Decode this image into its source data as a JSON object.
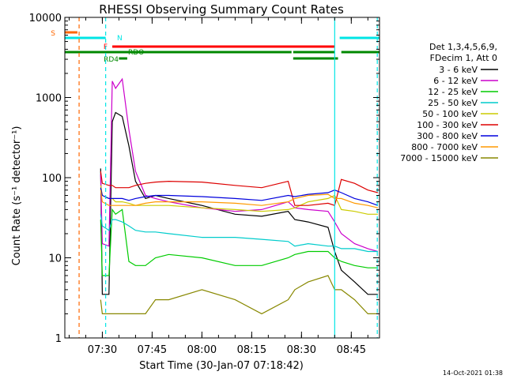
{
  "chart_data": {
    "type": "line",
    "title": "RHESSI Observing Summary Count Rates",
    "xlabel": "Start Time (30-Jan-07 07:18:42)",
    "ylabel": "Count Rate (s⁻¹ detector⁻¹)",
    "y_scale": "log",
    "ylim": [
      1,
      10000
    ],
    "xlim": [
      "07:18:42",
      "08:53:30"
    ],
    "x_ticks": [
      "07:30",
      "07:45",
      "08:00",
      "08:15",
      "08:30",
      "08:45"
    ],
    "y_ticks": [
      "1",
      "10",
      "100",
      "1000",
      "10000"
    ],
    "legend_header": [
      "Det 1,3,4,5,6,9,",
      "FDecim 1, Att 0"
    ],
    "legend_position": "right",
    "timestamp": "14-Oct-2021 01:38",
    "series": [
      {
        "name": "3 - 6 keV",
        "color": "#000000",
        "x": [
          "07:29:30",
          "07:30:00",
          "07:32:00",
          "07:33:00",
          "07:34:00",
          "07:36:00",
          "07:38:00",
          "07:40:00",
          "07:43:00",
          "07:46:00",
          "07:50:00",
          "08:00:00",
          "08:10:00",
          "08:18:00",
          "08:26:00",
          "08:28:00",
          "08:32:00",
          "08:38:00",
          "08:40:00",
          "08:42:00",
          "08:46:00",
          "08:50:00",
          "08:53:00"
        ],
        "values": [
          130,
          3.5,
          3.5,
          500,
          650,
          580,
          250,
          90,
          55,
          60,
          55,
          45,
          35,
          33,
          38,
          30,
          28,
          24,
          12,
          7,
          5,
          3.5,
          3.5
        ]
      },
      {
        "name": "6 - 12 keV",
        "color": "#cc00cc",
        "x": [
          "07:29:30",
          "07:30:00",
          "07:32:00",
          "07:33:00",
          "07:34:00",
          "07:36:00",
          "07:38:00",
          "07:40:00",
          "07:43:00",
          "07:46:00",
          "07:50:00",
          "08:00:00",
          "08:10:00",
          "08:18:00",
          "08:26:00",
          "08:28:00",
          "08:32:00",
          "08:38:00",
          "08:40:00",
          "08:42:00",
          "08:46:00",
          "08:50:00",
          "08:53:00"
        ],
        "values": [
          110,
          15,
          14,
          1600,
          1300,
          1700,
          400,
          120,
          60,
          55,
          50,
          42,
          38,
          40,
          50,
          42,
          40,
          38,
          28,
          20,
          15,
          13,
          12
        ]
      },
      {
        "name": "12 - 25 keV",
        "color": "#00cc00",
        "x": [
          "07:29:30",
          "07:30:00",
          "07:32:00",
          "07:33:00",
          "07:34:00",
          "07:36:00",
          "07:38:00",
          "07:40:00",
          "07:43:00",
          "07:46:00",
          "07:50:00",
          "08:00:00",
          "08:10:00",
          "08:18:00",
          "08:26:00",
          "08:28:00",
          "08:32:00",
          "08:38:00",
          "08:40:00",
          "08:42:00",
          "08:46:00",
          "08:50:00",
          "08:53:00"
        ],
        "values": [
          30,
          6,
          6,
          40,
          35,
          40,
          9,
          8,
          8,
          10,
          11,
          10,
          8,
          8,
          10,
          11,
          12,
          12,
          10,
          9,
          8,
          7.5,
          7.5
        ]
      },
      {
        "name": "25 - 50 keV",
        "color": "#00cccc",
        "x": [
          "07:29:30",
          "07:30:00",
          "07:32:00",
          "07:33:00",
          "07:34:00",
          "07:36:00",
          "07:38:00",
          "07:40:00",
          "07:43:00",
          "07:46:00",
          "07:50:00",
          "08:00:00",
          "08:10:00",
          "08:18:00",
          "08:26:00",
          "08:28:00",
          "08:32:00",
          "08:38:00",
          "08:40:00",
          "08:42:00",
          "08:46:00",
          "08:50:00",
          "08:53:00"
        ],
        "values": [
          35,
          25,
          22,
          30,
          30,
          28,
          25,
          22,
          21,
          21,
          20,
          18,
          18,
          17,
          16,
          14,
          15,
          14,
          14,
          13,
          13,
          12,
          12
        ]
      },
      {
        "name": "50 - 100 keV",
        "color": "#cccc00",
        "x": [
          "07:29:30",
          "07:30:00",
          "07:32:00",
          "07:33:00",
          "07:34:00",
          "07:36:00",
          "07:38:00",
          "07:40:00",
          "07:43:00",
          "07:46:00",
          "07:50:00",
          "08:00:00",
          "08:10:00",
          "08:18:00",
          "08:26:00",
          "08:28:00",
          "08:32:00",
          "08:38:00",
          "08:40:00",
          "08:42:00",
          "08:46:00",
          "08:50:00",
          "08:53:00"
        ],
        "values": [
          80,
          60,
          55,
          55,
          50,
          50,
          48,
          45,
          45,
          45,
          45,
          42,
          40,
          38,
          40,
          42,
          50,
          55,
          60,
          40,
          38,
          35,
          35
        ]
      },
      {
        "name": "100 - 300 keV",
        "color": "#dd0000",
        "x": [
          "07:29:30",
          "07:30:00",
          "07:32:00",
          "07:33:00",
          "07:34:00",
          "07:36:00",
          "07:38:00",
          "07:40:00",
          "07:43:00",
          "07:46:00",
          "07:50:00",
          "08:00:00",
          "08:10:00",
          "08:18:00",
          "08:26:00",
          "08:28:00",
          "08:32:00",
          "08:38:00",
          "08:40:00",
          "08:42:00",
          "08:46:00",
          "08:50:00",
          "08:53:00"
        ],
        "values": [
          120,
          85,
          80,
          80,
          75,
          75,
          75,
          80,
          85,
          88,
          90,
          88,
          80,
          75,
          90,
          45,
          45,
          48,
          45,
          95,
          85,
          70,
          65
        ]
      },
      {
        "name": "300 - 800 keV",
        "color": "#0000dd",
        "x": [
          "07:29:30",
          "07:30:00",
          "07:32:00",
          "07:33:00",
          "07:34:00",
          "07:36:00",
          "07:38:00",
          "07:40:00",
          "07:43:00",
          "07:46:00",
          "07:50:00",
          "08:00:00",
          "08:10:00",
          "08:18:00",
          "08:26:00",
          "08:28:00",
          "08:32:00",
          "08:38:00",
          "08:40:00",
          "08:42:00",
          "08:46:00",
          "08:50:00",
          "08:53:00"
        ],
        "values": [
          75,
          60,
          55,
          55,
          55,
          55,
          52,
          55,
          58,
          60,
          60,
          58,
          55,
          52,
          60,
          58,
          62,
          65,
          70,
          65,
          55,
          50,
          45
        ]
      },
      {
        "name": "800 - 7000 keV",
        "color": "#ff9900",
        "x": [
          "07:29:30",
          "07:30:00",
          "07:32:00",
          "07:33:00",
          "07:34:00",
          "07:36:00",
          "07:38:00",
          "07:40:00",
          "07:43:00",
          "07:46:00",
          "07:50:00",
          "08:00:00",
          "08:10:00",
          "08:18:00",
          "08:26:00",
          "08:28:00",
          "08:32:00",
          "08:38:00",
          "08:40:00",
          "08:42:00",
          "08:46:00",
          "08:50:00",
          "08:53:00"
        ],
        "values": [
          70,
          50,
          45,
          45,
          45,
          45,
          45,
          45,
          48,
          50,
          50,
          50,
          48,
          45,
          50,
          55,
          60,
          62,
          55,
          55,
          48,
          45,
          42
        ]
      },
      {
        "name": "7000 - 15000 keV",
        "color": "#888800",
        "x": [
          "07:29:30",
          "07:30:00",
          "07:32:00",
          "07:33:00",
          "07:34:00",
          "07:36:00",
          "07:38:00",
          "07:40:00",
          "07:43:00",
          "07:46:00",
          "07:50:00",
          "08:00:00",
          "08:10:00",
          "08:18:00",
          "08:26:00",
          "08:28:00",
          "08:32:00",
          "08:38:00",
          "08:40:00",
          "08:42:00",
          "08:46:00",
          "08:50:00",
          "08:53:00"
        ],
        "values": [
          3,
          2,
          2,
          2,
          2,
          2,
          2,
          2,
          2,
          3,
          3,
          4,
          3,
          2,
          3,
          4,
          5,
          6,
          4,
          4,
          3,
          2,
          2
        ]
      }
    ],
    "flag_bars": [
      {
        "label": "S",
        "color": "#ff6600",
        "segments": [
          [
            "07:18:42",
            "07:22:30"
          ]
        ]
      },
      {
        "label": "N",
        "color": "#00e5e5",
        "segments": [
          [
            "07:18:42",
            "07:31:00"
          ],
          [
            "08:41:30",
            "08:53:30"
          ]
        ]
      },
      {
        "label": "F",
        "color": "#ff0000",
        "segments": [
          [
            "07:33:00",
            "08:40:00"
          ]
        ]
      },
      {
        "label": "RDO",
        "color": "#008800",
        "segments": [
          [
            "07:18:42",
            "08:27:00"
          ],
          [
            "08:27:30",
            "08:40:00"
          ],
          [
            "08:42:00",
            "08:53:30"
          ]
        ]
      },
      {
        "label": "RD4",
        "color": "#008800",
        "segments": [
          [
            "07:35:00",
            "07:37:30"
          ],
          [
            "08:27:30",
            "08:41:00"
          ]
        ]
      }
    ],
    "markers": [
      {
        "time": "07:23:00",
        "color": "#ff6600",
        "style": "dashed"
      },
      {
        "time": "07:31:00",
        "color": "#00e5e5",
        "style": "dashed"
      },
      {
        "time": "08:40:00",
        "color": "#00e5e5",
        "style": "solid"
      },
      {
        "time": "08:52:50",
        "color": "#00e5e5",
        "style": "dashed"
      }
    ]
  }
}
